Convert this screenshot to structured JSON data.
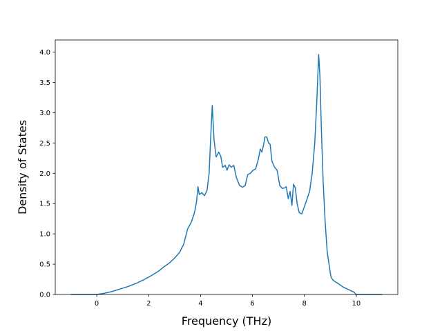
{
  "chart_data": {
    "type": "line",
    "title": "",
    "xlabel": "Frequency (THz)",
    "ylabel": "Density of States",
    "xlim": [
      -1.6,
      11.6
    ],
    "ylim": [
      0,
      4.2
    ],
    "xticks": [
      0,
      2,
      4,
      6,
      8,
      10
    ],
    "yticks": [
      0.0,
      0.5,
      1.0,
      1.5,
      2.0,
      2.5,
      3.0,
      3.5,
      4.0
    ],
    "grid": false,
    "legend": "none",
    "series": [
      {
        "color": "#1f77b4",
        "x": [
          -1.0,
          -0.5,
          0.0,
          0.3,
          0.6,
          0.9,
          1.2,
          1.5,
          1.8,
          2.1,
          2.4,
          2.6,
          2.8,
          3.0,
          3.2,
          3.35,
          3.5,
          3.65,
          3.75,
          3.8,
          3.85,
          3.9,
          3.95,
          4.05,
          4.15,
          4.25,
          4.33,
          4.38,
          4.45,
          4.52,
          4.6,
          4.7,
          4.78,
          4.85,
          4.95,
          5.02,
          5.1,
          5.18,
          5.28,
          5.38,
          5.5,
          5.62,
          5.72,
          5.82,
          5.92,
          6.02,
          6.12,
          6.22,
          6.3,
          6.36,
          6.42,
          6.48,
          6.55,
          6.62,
          6.68,
          6.75,
          6.85,
          6.95,
          7.05,
          7.15,
          7.25,
          7.3,
          7.38,
          7.45,
          7.52,
          7.58,
          7.65,
          7.72,
          7.8,
          7.9,
          8.0,
          8.1,
          8.2,
          8.3,
          8.4,
          8.48,
          8.55,
          8.6,
          8.65,
          8.72,
          8.8,
          8.88,
          8.95,
          9.02,
          9.08,
          9.15,
          9.3,
          9.5,
          9.7,
          9.9,
          10.0,
          10.1,
          10.5,
          11.0
        ],
        "values": [
          0.0,
          0.0,
          0.0,
          0.02,
          0.05,
          0.09,
          0.13,
          0.18,
          0.24,
          0.31,
          0.39,
          0.46,
          0.52,
          0.6,
          0.7,
          0.83,
          1.08,
          1.2,
          1.33,
          1.42,
          1.55,
          1.78,
          1.65,
          1.68,
          1.63,
          1.72,
          2.0,
          2.5,
          3.12,
          2.55,
          2.27,
          2.35,
          2.28,
          2.1,
          2.13,
          2.05,
          2.14,
          2.1,
          2.13,
          1.93,
          1.8,
          1.77,
          1.8,
          1.98,
          2.0,
          2.05,
          2.07,
          2.22,
          2.4,
          2.35,
          2.45,
          2.6,
          2.6,
          2.5,
          2.48,
          2.2,
          2.1,
          2.05,
          1.8,
          1.75,
          1.76,
          1.78,
          1.58,
          1.7,
          1.47,
          1.82,
          1.76,
          1.5,
          1.35,
          1.33,
          1.45,
          1.57,
          1.7,
          2.0,
          2.5,
          3.2,
          3.96,
          3.6,
          2.8,
          1.9,
          1.2,
          0.7,
          0.5,
          0.3,
          0.25,
          0.22,
          0.18,
          0.12,
          0.08,
          0.04,
          0.0,
          0.0,
          0.0,
          0.0
        ]
      }
    ]
  }
}
